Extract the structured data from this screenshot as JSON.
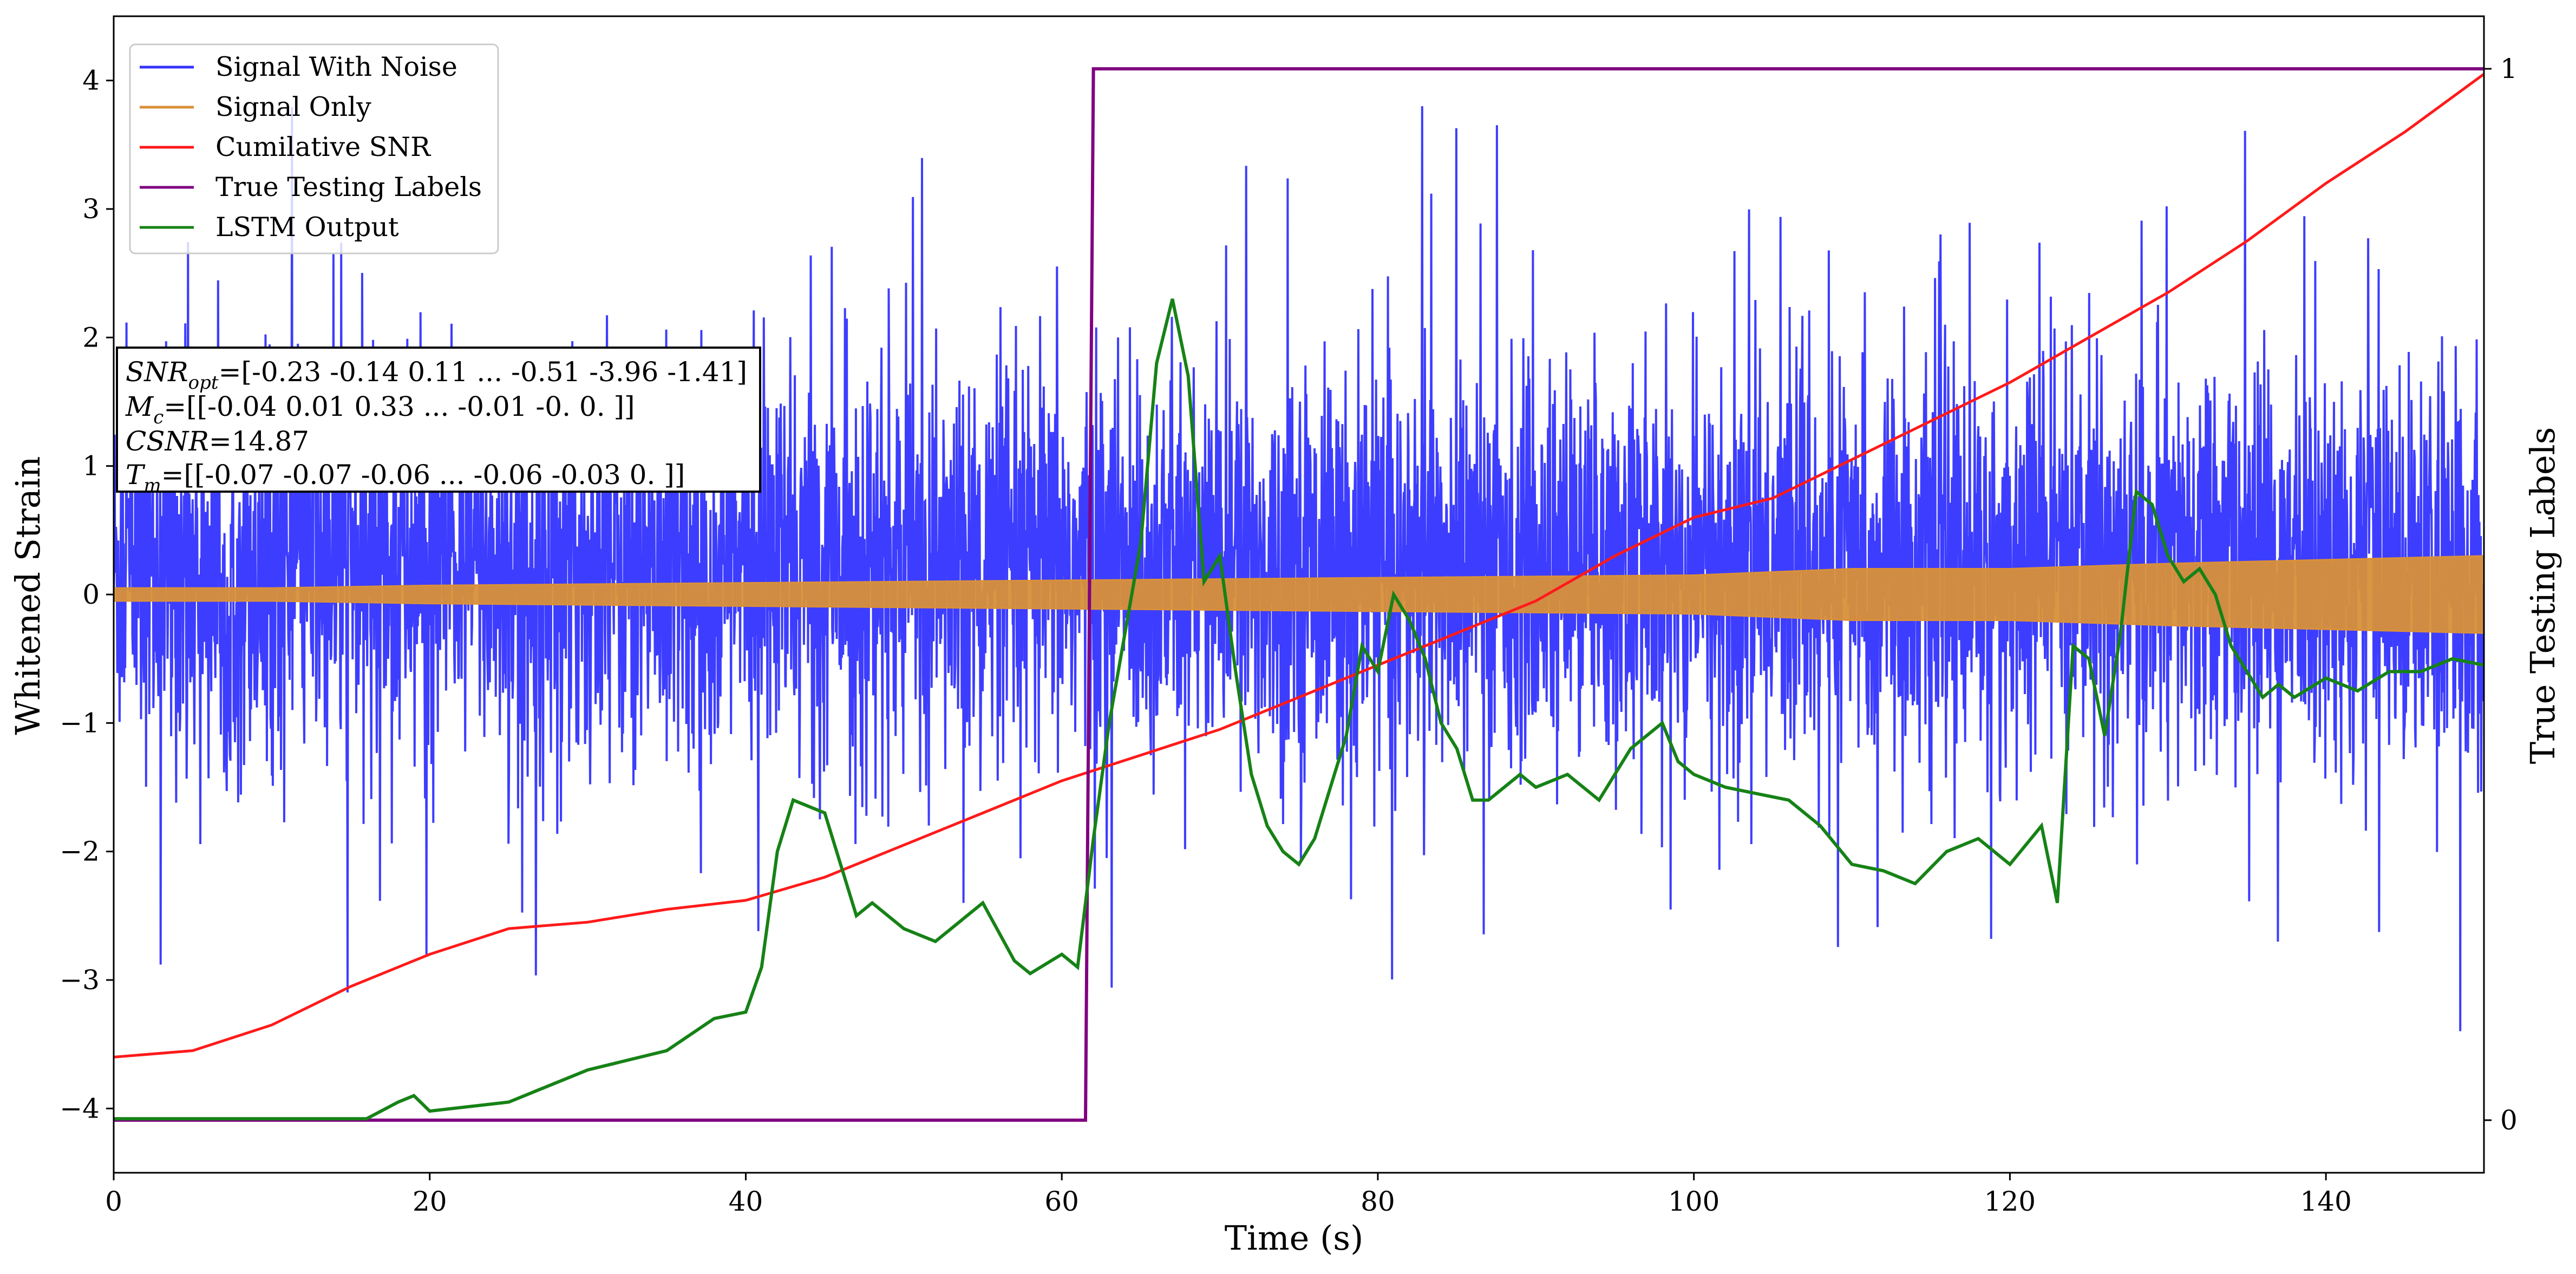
{
  "chart_data": {
    "type": "line",
    "xlabel": "Time (s)",
    "ylabel": "Whitened Strain",
    "y2label": "True Testing Labels",
    "xlim": [
      0,
      150
    ],
    "ylim": [
      -4.5,
      4.5
    ],
    "y2lim": [
      -0.05,
      1.05
    ],
    "xticks": [
      0,
      20,
      40,
      60,
      80,
      100,
      120,
      140
    ],
    "yticks": [
      -4,
      -3,
      -2,
      -1,
      0,
      1,
      2,
      3,
      4
    ],
    "y2ticks": [
      0,
      1
    ],
    "grid": false,
    "legend_position": "top-left",
    "legend": [
      "Signal With Noise",
      "Signal Only",
      "Cumilative SNR",
      "True Testing Labels",
      "LSTM Output"
    ],
    "colors": {
      "noise": "#3333ff",
      "signal": "#d9903a",
      "csnr": "#ff1a1a",
      "labels": "#800080",
      "lstm": "#168216"
    },
    "annotation": {
      "snr_symbol": "SNR",
      "snr_sub": "opt",
      "snr_value": "=[-0.23 -0.14  0.11 ... -0.51 -3.96 -1.41]",
      "mc_symbol": "M",
      "mc_sub": "c",
      "mc_value": "=[[-0.04  0.01  0.33 ... -0.01 -0.    0.  ]]",
      "csnr_symbol": "CSNR",
      "csnr_value": "=14.87",
      "tm_symbol": "T",
      "tm_sub": "m",
      "tm_value": "=[[-0.07 -0.07 -0.06 ... -0.06 -0.03  0.  ]]"
    },
    "series": [
      {
        "name": "Signal With Noise",
        "kind": "noise",
        "description_values": {
          "typical_min": -2.0,
          "typical_max": 2.5,
          "peak_max": 3.8,
          "peak_min": -4.2
        }
      },
      {
        "name": "Signal Only",
        "kind": "envelope",
        "x": [
          0,
          10,
          20,
          30,
          40,
          50,
          60,
          70,
          80,
          90,
          100,
          110,
          120,
          130,
          140,
          150
        ],
        "upper": [
          0.05,
          0.05,
          0.07,
          0.08,
          0.09,
          0.1,
          0.11,
          0.12,
          0.13,
          0.14,
          0.15,
          0.2,
          0.2,
          0.24,
          0.27,
          0.3
        ],
        "lower": [
          -0.05,
          -0.05,
          -0.07,
          -0.08,
          -0.09,
          -0.1,
          -0.11,
          -0.12,
          -0.13,
          -0.14,
          -0.15,
          -0.2,
          -0.2,
          -0.24,
          -0.27,
          -0.3
        ]
      },
      {
        "name": "Cumilative SNR",
        "x": [
          0,
          5,
          10,
          15,
          20,
          25,
          30,
          35,
          40,
          45,
          50,
          55,
          60,
          65,
          70,
          75,
          80,
          85,
          90,
          95,
          100,
          105,
          110,
          115,
          120,
          125,
          130,
          135,
          140,
          145,
          150
        ],
        "y": [
          -3.6,
          -3.55,
          -3.35,
          -3.05,
          -2.8,
          -2.6,
          -2.55,
          -2.45,
          -2.38,
          -2.2,
          -1.95,
          -1.7,
          -1.45,
          -1.25,
          -1.05,
          -0.8,
          -0.55,
          -0.3,
          -0.05,
          0.3,
          0.6,
          0.75,
          1.05,
          1.35,
          1.65,
          2.0,
          2.35,
          2.75,
          3.2,
          3.6,
          4.05
        ]
      },
      {
        "name": "True Testing Labels",
        "axis": "right",
        "x": [
          0,
          61.5,
          62,
          150
        ],
        "y": [
          0,
          0,
          1,
          1
        ]
      },
      {
        "name": "LSTM Output",
        "x": [
          0,
          16,
          18,
          19,
          20,
          25,
          27,
          30,
          35,
          38,
          40,
          41,
          42,
          43,
          45,
          47,
          48,
          50,
          52,
          55,
          57,
          58,
          60,
          61,
          62,
          63,
          64,
          65,
          66,
          67,
          68,
          69,
          70,
          71,
          72,
          73,
          74,
          75,
          76,
          77,
          78,
          79,
          80,
          81,
          82,
          83,
          84,
          85,
          86,
          87,
          88,
          89,
          90,
          92,
          94,
          96,
          98,
          99,
          100,
          102,
          104,
          106,
          108,
          110,
          112,
          114,
          116,
          118,
          120,
          122,
          123,
          124,
          125,
          126,
          127,
          128,
          129,
          130,
          131,
          132,
          133,
          134,
          135,
          136,
          137,
          138,
          140,
          142,
          144,
          146,
          148,
          150
        ],
        "y": [
          -4.08,
          -4.08,
          -3.95,
          -3.9,
          -4.02,
          -3.95,
          -3.85,
          -3.7,
          -3.55,
          -3.3,
          -3.25,
          -2.9,
          -2.0,
          -1.6,
          -1.7,
          -2.5,
          -2.4,
          -2.6,
          -2.7,
          -2.4,
          -2.85,
          -2.95,
          -2.8,
          -2.9,
          -1.9,
          -1.0,
          -0.3,
          0.4,
          1.8,
          2.3,
          1.7,
          0.1,
          0.3,
          -0.6,
          -1.4,
          -1.8,
          -2.0,
          -2.1,
          -1.9,
          -1.5,
          -1.1,
          -0.4,
          -0.6,
          0.0,
          -0.2,
          -0.5,
          -1.0,
          -1.2,
          -1.6,
          -1.6,
          -1.5,
          -1.4,
          -1.5,
          -1.4,
          -1.6,
          -1.2,
          -1.0,
          -1.3,
          -1.4,
          -1.5,
          -1.55,
          -1.6,
          -1.8,
          -2.1,
          -2.15,
          -2.25,
          -2.0,
          -1.9,
          -2.1,
          -1.8,
          -2.4,
          -0.4,
          -0.5,
          -1.1,
          -0.3,
          0.8,
          0.7,
          0.3,
          0.1,
          0.2,
          0.0,
          -0.4,
          -0.6,
          -0.8,
          -0.7,
          -0.8,
          -0.65,
          -0.75,
          -0.6,
          -0.6,
          -0.5,
          -0.55
        ]
      }
    ]
  }
}
